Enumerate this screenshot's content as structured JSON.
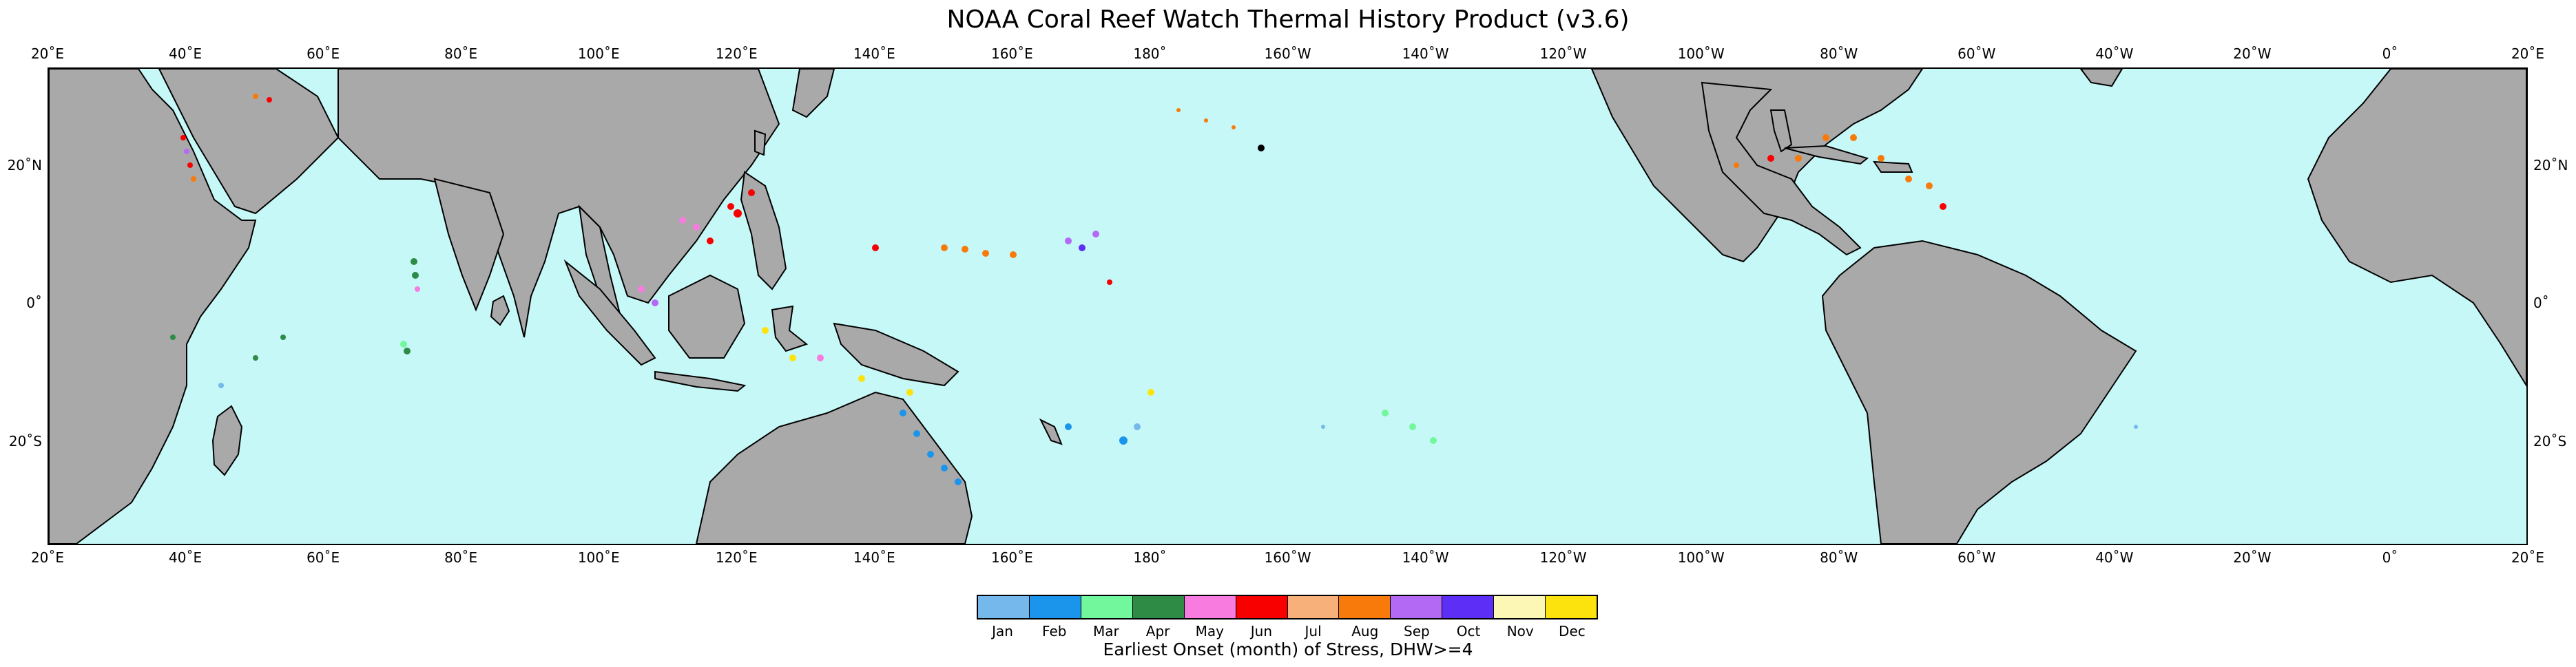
{
  "title": "NOAA Coral Reef Watch Thermal History Product (v3.6)",
  "colors": {
    "ocean": "#c5f8f7",
    "land": "#a9a9a9",
    "coast": "#000000"
  },
  "lon_labels": [
    "20˚E",
    "40˚E",
    "60˚E",
    "80˚E",
    "100˚E",
    "120˚E",
    "140˚E",
    "160˚E",
    "180˚",
    "160˚W",
    "140˚W",
    "120˚W",
    "100˚W",
    "80˚W",
    "60˚W",
    "40˚W",
    "20˚W",
    "0˚",
    "20˚E"
  ],
  "lat_labels": [
    "20˚N",
    "0˚",
    "20˚S"
  ],
  "legend": {
    "title": "Earliest Onset (month) of Stress, DHW>=4",
    "months": [
      {
        "label": "Jan",
        "color": "#75b9ec"
      },
      {
        "label": "Feb",
        "color": "#1b95eb"
      },
      {
        "label": "Mar",
        "color": "#72f79c"
      },
      {
        "label": "Apr",
        "color": "#2e8b45"
      },
      {
        "label": "May",
        "color": "#f87be0"
      },
      {
        "label": "Jun",
        "color": "#f80000"
      },
      {
        "label": "Jul",
        "color": "#f8b07a"
      },
      {
        "label": "Aug",
        "color": "#f87a0a"
      },
      {
        "label": "Sep",
        "color": "#b469f5"
      },
      {
        "label": "Oct",
        "color": "#5d2ef5"
      },
      {
        "label": "Nov",
        "color": "#fdf7b5"
      },
      {
        "label": "Dec",
        "color": "#fde30e"
      }
    ]
  }
}
